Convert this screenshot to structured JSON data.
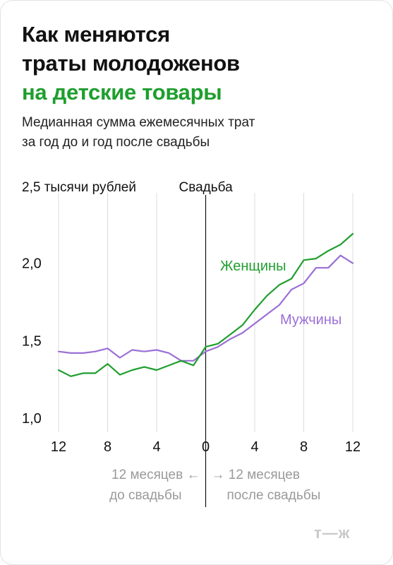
{
  "header": {
    "title_line1": "Как меняются",
    "title_line2": "траты молодоженов",
    "title_line3": "на детские товары",
    "subtitle_line1": "Медианная сумма ежемесячных трат",
    "subtitle_line2": "за год до и год после свадьбы"
  },
  "footer": {
    "logo": "т—ж"
  },
  "colors": {
    "women": "#1f9e2e",
    "men": "#9b6fd6",
    "accent": "#1f9e2e"
  },
  "chart_data": {
    "type": "line",
    "ylabel": "2,5 тысячи рублей",
    "ylim": [
      1.0,
      2.5
    ],
    "y_ticks": [
      "1,0",
      "1,5",
      "2,0"
    ],
    "y_tick_values": [
      1.0,
      1.5,
      2.0
    ],
    "x_tick_labels": [
      "12",
      "8",
      "4",
      "0",
      "4",
      "8",
      "12"
    ],
    "x_tick_values": [
      -12,
      -8,
      -4,
      0,
      4,
      8,
      12
    ],
    "xlim": [
      -12,
      12
    ],
    "event_label": "Свадьба",
    "before_label": [
      "12 месяцев ←",
      "до свадьбы"
    ],
    "after_label": [
      "→ 12 месяцев",
      "после свадьбы"
    ],
    "grid": true,
    "x": [
      -12,
      -11,
      -10,
      -9,
      -8,
      -7,
      -6,
      -5,
      -4,
      -3,
      -2,
      -1,
      0,
      1,
      2,
      3,
      4,
      5,
      6,
      7,
      8,
      9,
      10,
      11,
      12
    ],
    "series": [
      {
        "name": "Женщины",
        "values": [
          1.31,
          1.27,
          1.29,
          1.29,
          1.35,
          1.28,
          1.31,
          1.33,
          1.31,
          1.34,
          1.37,
          1.34,
          1.46,
          1.48,
          1.54,
          1.6,
          1.7,
          1.79,
          1.86,
          1.9,
          2.02,
          2.03,
          2.08,
          2.12,
          2.19
        ]
      },
      {
        "name": "Мужчины",
        "values": [
          1.43,
          1.42,
          1.42,
          1.43,
          1.45,
          1.39,
          1.44,
          1.43,
          1.44,
          1.42,
          1.37,
          1.37,
          1.43,
          1.46,
          1.51,
          1.55,
          1.61,
          1.67,
          1.73,
          1.83,
          1.87,
          1.97,
          1.97,
          2.05,
          2.0
        ]
      }
    ]
  }
}
